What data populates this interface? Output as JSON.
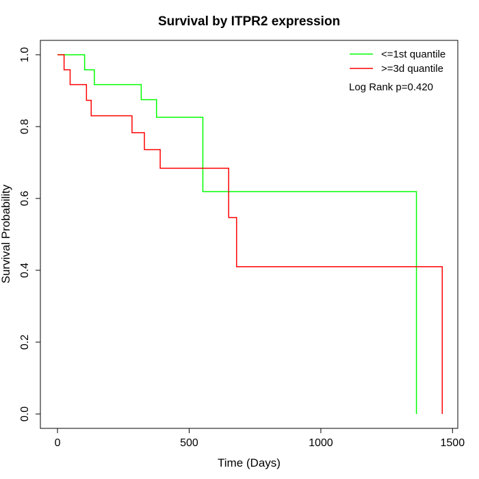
{
  "chart_data": {
    "type": "line",
    "step": true,
    "title": "Survival by ITPR2 expression",
    "xlabel": "Time (Days)",
    "ylabel": "Survival Probability",
    "xlim": [
      -65,
      1520
    ],
    "ylim": [
      -0.04,
      1.04
    ],
    "xticks": [
      0,
      500,
      1000,
      1500
    ],
    "xtick_labels": [
      "0",
      "500",
      "1000",
      "1500"
    ],
    "yticks": [
      0.0,
      0.2,
      0.4,
      0.6,
      0.8,
      1.0
    ],
    "ytick_labels": [
      "0.0",
      "0.2",
      "0.4",
      "0.6",
      "0.8",
      "1.0"
    ],
    "grid": false,
    "legend_position": "top-right",
    "annotation": "Log Rank p=0.420",
    "series": [
      {
        "name": "<=1st quantile",
        "color": "#00ff00",
        "x": [
          0,
          103,
          140,
          318,
          376,
          552,
          1363,
          1363
        ],
        "y": [
          1.0,
          0.958,
          0.917,
          0.875,
          0.826,
          0.619,
          0.619,
          0.0
        ]
      },
      {
        "name": ">=3d quantile",
        "color": "#ff0000",
        "x": [
          0,
          25,
          48,
          110,
          128,
          283,
          330,
          390,
          650,
          680,
          1461,
          1461
        ],
        "y": [
          1.0,
          0.958,
          0.917,
          0.873,
          0.83,
          0.783,
          0.736,
          0.684,
          0.547,
          0.41,
          0.41,
          0.0
        ]
      }
    ]
  }
}
